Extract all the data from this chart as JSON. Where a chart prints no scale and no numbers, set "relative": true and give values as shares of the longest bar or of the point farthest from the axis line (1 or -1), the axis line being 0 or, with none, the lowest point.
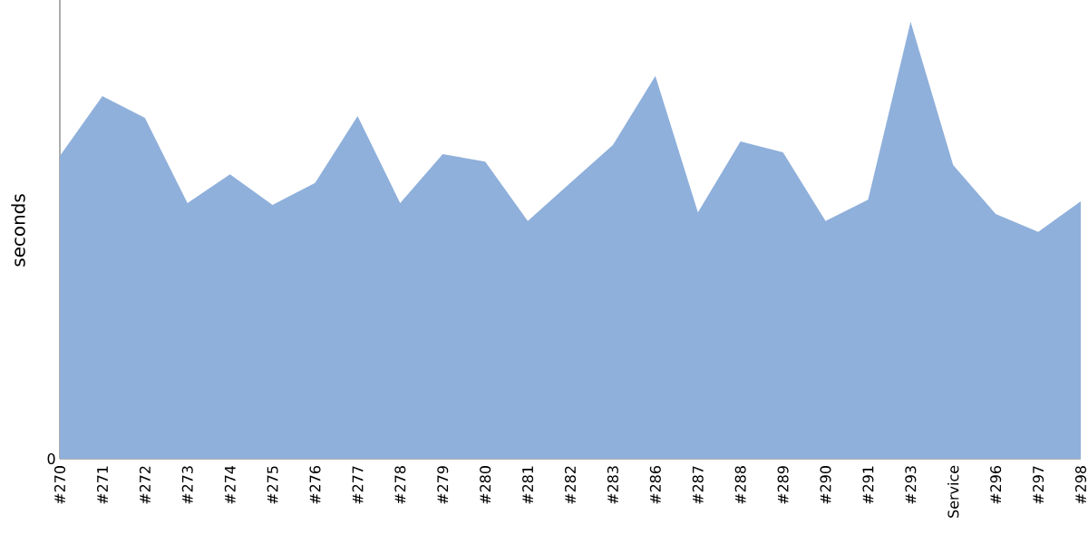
{
  "chart_data": {
    "type": "area",
    "relative": true,
    "ylabel": "seconds",
    "color": "#8fb0db",
    "annotations": [
      {
        "text": "0",
        "y": 0
      }
    ],
    "categories": [
      "#270",
      "#271",
      "#272",
      "#273",
      "#274",
      "#275",
      "#276",
      "#277",
      "#278",
      "#279",
      "#280",
      "#281",
      "#282",
      "#283",
      "#286",
      "#287",
      "#288",
      "#289",
      "#290",
      "#291",
      "#293",
      "Service",
      "#296",
      "#297",
      "#298"
    ],
    "values": [
      0.693,
      0.83,
      0.78,
      0.585,
      0.651,
      0.581,
      0.631,
      0.784,
      0.585,
      0.697,
      0.68,
      0.544,
      0.631,
      0.718,
      0.876,
      0.564,
      0.726,
      0.701,
      0.544,
      0.593,
      1,
      0.672,
      0.56,
      0.519,
      0.589
    ]
  }
}
